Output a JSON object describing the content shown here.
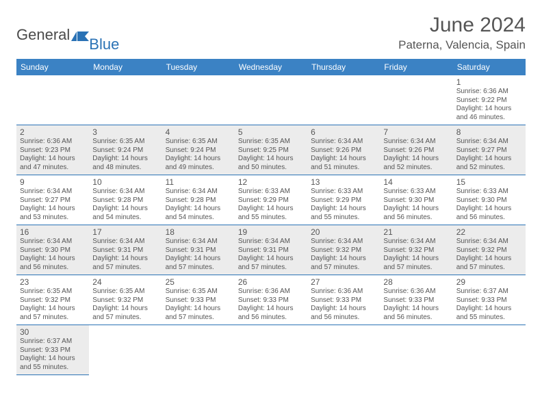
{
  "brand": {
    "part1": "General",
    "part2": "Blue",
    "text_color": "#4a4a4a",
    "accent_color": "#2a72b5"
  },
  "title": "June 2024",
  "location": "Paterna, Valencia, Spain",
  "header_bg": "#3b82c4",
  "header_fg": "#ffffff",
  "border_color": "#2a72b5",
  "alt_row_bg": "#ececec",
  "day_names": [
    "Sunday",
    "Monday",
    "Tuesday",
    "Wednesday",
    "Thursday",
    "Friday",
    "Saturday"
  ],
  "weeks": [
    [
      null,
      null,
      null,
      null,
      null,
      null,
      {
        "n": "1",
        "sr": "Sunrise: 6:36 AM",
        "ss": "Sunset: 9:22 PM",
        "dl": "Daylight: 14 hours and 46 minutes."
      }
    ],
    [
      {
        "n": "2",
        "sr": "Sunrise: 6:36 AM",
        "ss": "Sunset: 9:23 PM",
        "dl": "Daylight: 14 hours and 47 minutes."
      },
      {
        "n": "3",
        "sr": "Sunrise: 6:35 AM",
        "ss": "Sunset: 9:24 PM",
        "dl": "Daylight: 14 hours and 48 minutes."
      },
      {
        "n": "4",
        "sr": "Sunrise: 6:35 AM",
        "ss": "Sunset: 9:24 PM",
        "dl": "Daylight: 14 hours and 49 minutes."
      },
      {
        "n": "5",
        "sr": "Sunrise: 6:35 AM",
        "ss": "Sunset: 9:25 PM",
        "dl": "Daylight: 14 hours and 50 minutes."
      },
      {
        "n": "6",
        "sr": "Sunrise: 6:34 AM",
        "ss": "Sunset: 9:26 PM",
        "dl": "Daylight: 14 hours and 51 minutes."
      },
      {
        "n": "7",
        "sr": "Sunrise: 6:34 AM",
        "ss": "Sunset: 9:26 PM",
        "dl": "Daylight: 14 hours and 52 minutes."
      },
      {
        "n": "8",
        "sr": "Sunrise: 6:34 AM",
        "ss": "Sunset: 9:27 PM",
        "dl": "Daylight: 14 hours and 52 minutes."
      }
    ],
    [
      {
        "n": "9",
        "sr": "Sunrise: 6:34 AM",
        "ss": "Sunset: 9:27 PM",
        "dl": "Daylight: 14 hours and 53 minutes."
      },
      {
        "n": "10",
        "sr": "Sunrise: 6:34 AM",
        "ss": "Sunset: 9:28 PM",
        "dl": "Daylight: 14 hours and 54 minutes."
      },
      {
        "n": "11",
        "sr": "Sunrise: 6:34 AM",
        "ss": "Sunset: 9:28 PM",
        "dl": "Daylight: 14 hours and 54 minutes."
      },
      {
        "n": "12",
        "sr": "Sunrise: 6:33 AM",
        "ss": "Sunset: 9:29 PM",
        "dl": "Daylight: 14 hours and 55 minutes."
      },
      {
        "n": "13",
        "sr": "Sunrise: 6:33 AM",
        "ss": "Sunset: 9:29 PM",
        "dl": "Daylight: 14 hours and 55 minutes."
      },
      {
        "n": "14",
        "sr": "Sunrise: 6:33 AM",
        "ss": "Sunset: 9:30 PM",
        "dl": "Daylight: 14 hours and 56 minutes."
      },
      {
        "n": "15",
        "sr": "Sunrise: 6:33 AM",
        "ss": "Sunset: 9:30 PM",
        "dl": "Daylight: 14 hours and 56 minutes."
      }
    ],
    [
      {
        "n": "16",
        "sr": "Sunrise: 6:34 AM",
        "ss": "Sunset: 9:30 PM",
        "dl": "Daylight: 14 hours and 56 minutes."
      },
      {
        "n": "17",
        "sr": "Sunrise: 6:34 AM",
        "ss": "Sunset: 9:31 PM",
        "dl": "Daylight: 14 hours and 57 minutes."
      },
      {
        "n": "18",
        "sr": "Sunrise: 6:34 AM",
        "ss": "Sunset: 9:31 PM",
        "dl": "Daylight: 14 hours and 57 minutes."
      },
      {
        "n": "19",
        "sr": "Sunrise: 6:34 AM",
        "ss": "Sunset: 9:31 PM",
        "dl": "Daylight: 14 hours and 57 minutes."
      },
      {
        "n": "20",
        "sr": "Sunrise: 6:34 AM",
        "ss": "Sunset: 9:32 PM",
        "dl": "Daylight: 14 hours and 57 minutes."
      },
      {
        "n": "21",
        "sr": "Sunrise: 6:34 AM",
        "ss": "Sunset: 9:32 PM",
        "dl": "Daylight: 14 hours and 57 minutes."
      },
      {
        "n": "22",
        "sr": "Sunrise: 6:34 AM",
        "ss": "Sunset: 9:32 PM",
        "dl": "Daylight: 14 hours and 57 minutes."
      }
    ],
    [
      {
        "n": "23",
        "sr": "Sunrise: 6:35 AM",
        "ss": "Sunset: 9:32 PM",
        "dl": "Daylight: 14 hours and 57 minutes."
      },
      {
        "n": "24",
        "sr": "Sunrise: 6:35 AM",
        "ss": "Sunset: 9:32 PM",
        "dl": "Daylight: 14 hours and 57 minutes."
      },
      {
        "n": "25",
        "sr": "Sunrise: 6:35 AM",
        "ss": "Sunset: 9:33 PM",
        "dl": "Daylight: 14 hours and 57 minutes."
      },
      {
        "n": "26",
        "sr": "Sunrise: 6:36 AM",
        "ss": "Sunset: 9:33 PM",
        "dl": "Daylight: 14 hours and 56 minutes."
      },
      {
        "n": "27",
        "sr": "Sunrise: 6:36 AM",
        "ss": "Sunset: 9:33 PM",
        "dl": "Daylight: 14 hours and 56 minutes."
      },
      {
        "n": "28",
        "sr": "Sunrise: 6:36 AM",
        "ss": "Sunset: 9:33 PM",
        "dl": "Daylight: 14 hours and 56 minutes."
      },
      {
        "n": "29",
        "sr": "Sunrise: 6:37 AM",
        "ss": "Sunset: 9:33 PM",
        "dl": "Daylight: 14 hours and 55 minutes."
      }
    ],
    [
      {
        "n": "30",
        "sr": "Sunrise: 6:37 AM",
        "ss": "Sunset: 9:33 PM",
        "dl": "Daylight: 14 hours and 55 minutes."
      },
      null,
      null,
      null,
      null,
      null,
      null
    ]
  ]
}
